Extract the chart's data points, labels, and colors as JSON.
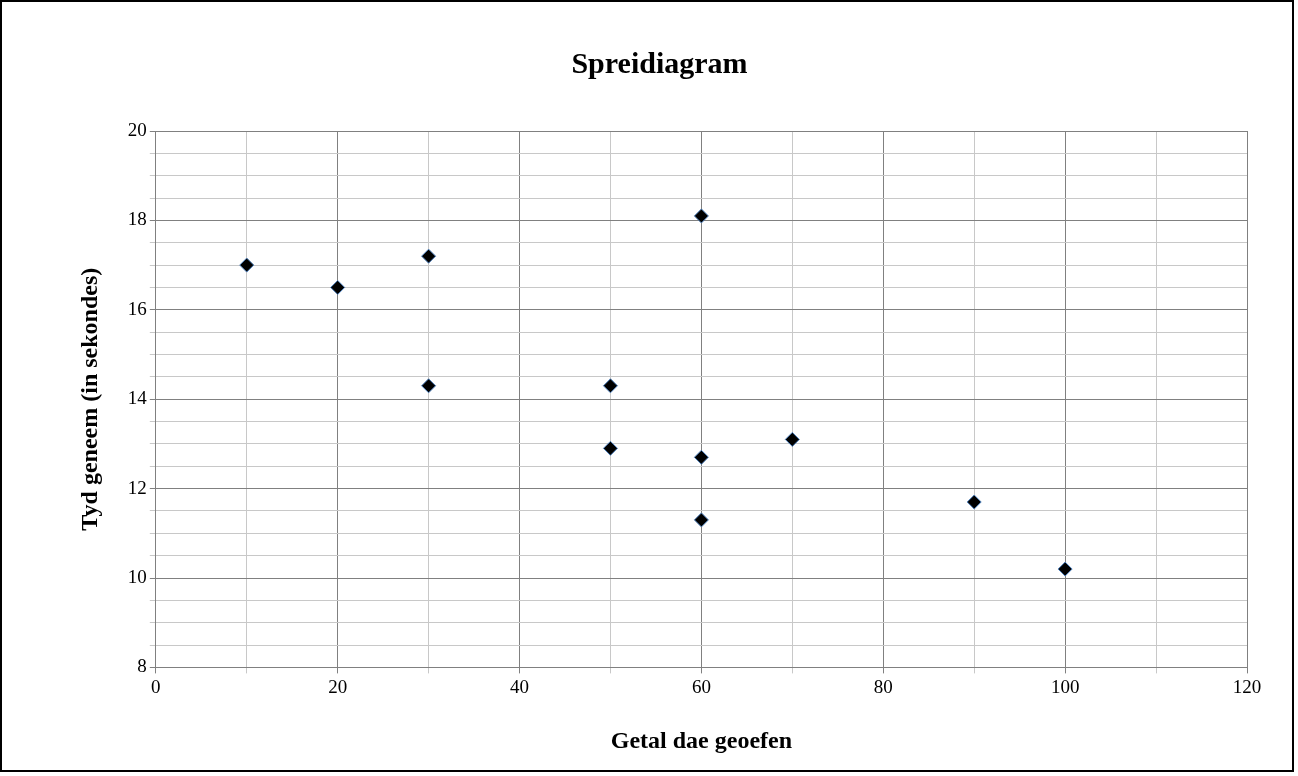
{
  "chart_data": {
    "type": "scatter",
    "title": "Spreidiagram",
    "xlabel": "Getal dae geoefen",
    "ylabel": "Tyd geneem (in sekondes)",
    "x": [
      10,
      20,
      30,
      30,
      50,
      50,
      60,
      60,
      60,
      70,
      90,
      100
    ],
    "series": [
      {
        "color": "#000000",
        "values": [
          17,
          16.5,
          17.2,
          14.3,
          14.3,
          12.9,
          18.1,
          12.7,
          11.3,
          13.1,
          11.7,
          10.2
        ]
      }
    ],
    "xlim": [
      0,
      120
    ],
    "ylim": [
      8,
      20
    ],
    "xticks": [
      0,
      {
        "value": 10,
        "label": null
      },
      20,
      {
        "value": 30,
        "label": null
      },
      40,
      {
        "value": 50,
        "label": null
      },
      60,
      {
        "value": 70,
        "label": null
      },
      80,
      {
        "value": 90,
        "label": null
      },
      100,
      {
        "value": 110,
        "label": null
      },
      120
    ],
    "yticks": [
      8,
      {
        "value": 8.5,
        "label": null
      },
      {
        "value": 9,
        "label": null
      },
      {
        "value": 9.5,
        "label": null
      },
      10,
      {
        "value": 10.5,
        "label": null
      },
      {
        "value": 11,
        "label": null
      },
      {
        "value": 11.5,
        "label": null
      },
      12,
      {
        "value": 12.5,
        "label": null
      },
      {
        "value": 13,
        "label": null
      },
      {
        "value": 13.5,
        "label": null
      },
      14,
      {
        "value": 14.5,
        "label": null
      },
      {
        "value": 15,
        "label": null
      },
      {
        "value": 15.5,
        "label": null
      },
      16,
      {
        "value": 16.5,
        "label": null
      },
      {
        "value": 17,
        "label": null
      },
      {
        "value": 17.5,
        "label": null
      },
      18,
      {
        "value": 18.5,
        "label": null
      },
      {
        "value": 19,
        "label": null
      },
      {
        "value": 19.5,
        "label": null
      },
      20
    ],
    "grid": true,
    "legend": false,
    "marker": "diamond"
  }
}
